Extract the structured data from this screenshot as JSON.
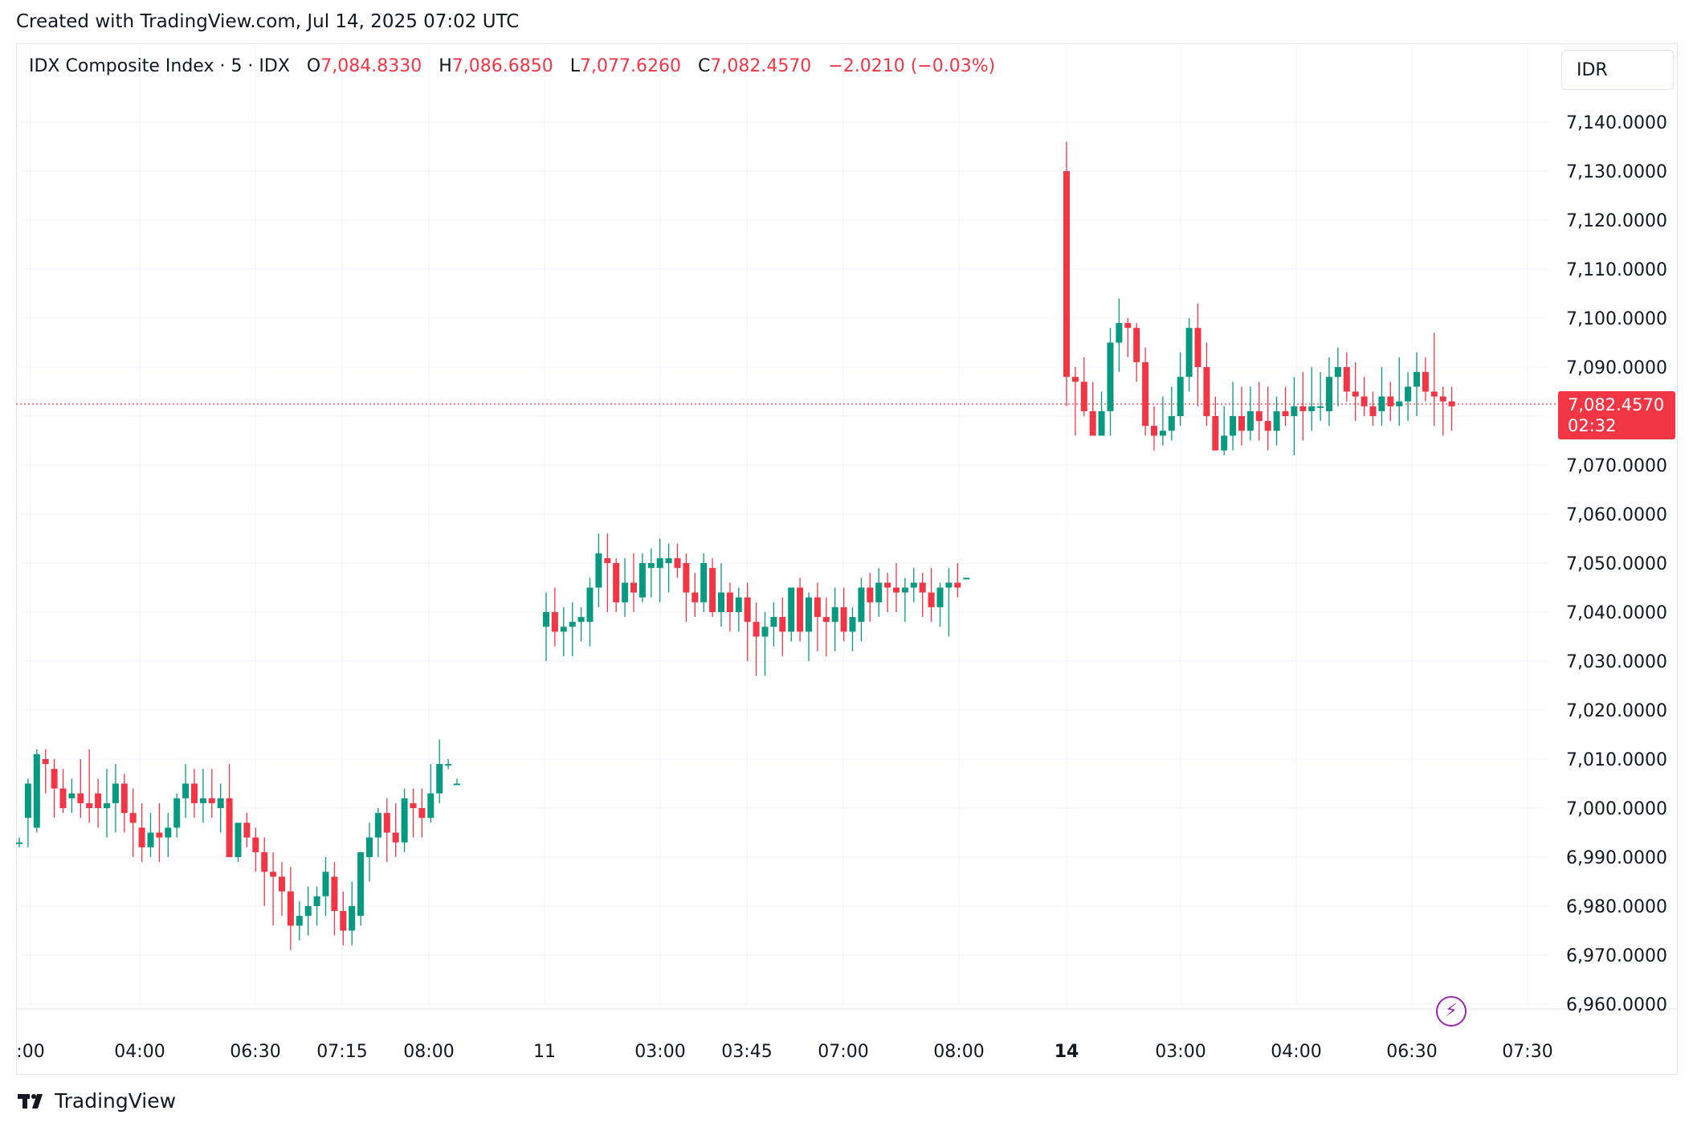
{
  "header": {
    "created_with": "Created with TradingView.com, Jul 14, 2025 07:02 UTC"
  },
  "legend": {
    "symbol": "IDX Composite Index · 5 · IDX",
    "open_label": "O",
    "open_value": "7,084.8330",
    "high_label": "H",
    "high_value": "7,086.6850",
    "low_label": "L",
    "low_value": "7,077.6260",
    "close_label": "C",
    "close_value": "7,082.4570",
    "change": "−2.0210 (−0.03%)"
  },
  "currency": "IDR",
  "last_price": {
    "value": "7,082.4570",
    "countdown": "02:32"
  },
  "footer": {
    "brand": "TradingView"
  },
  "colors": {
    "up": "#089981",
    "down": "#f23645",
    "grid": "#f0f3fa",
    "accent": "#9c27b0"
  },
  "icons": {
    "bolt": "lightning-icon",
    "logo": "tradingview-logo-icon"
  },
  "chart_data": {
    "type": "candlestick",
    "title": "IDX Composite Index · 5 · IDX",
    "currency": "IDR",
    "interval": "5",
    "y_ticks": [
      "7,140.0000",
      "7,130.0000",
      "7,120.0000",
      "7,110.0000",
      "7,100.0000",
      "7,090.0000",
      "7,070.0000",
      "7,060.0000",
      "7,050.0000",
      "7,040.0000",
      "7,030.0000",
      "7,020.0000",
      "7,010.0000",
      "7,000.0000",
      "6,990.0000",
      "6,980.0000",
      "6,970.0000",
      "6,960.0000"
    ],
    "y_tick_values": [
      7140,
      7130,
      7120,
      7110,
      7100,
      7090,
      7070,
      7060,
      7050,
      7040,
      7030,
      7020,
      7010,
      7000,
      6990,
      6980,
      6970,
      6960
    ],
    "ylim": [
      6955,
      7150
    ],
    "x_ticks": [
      ":00",
      "04:00",
      "06:30",
      "07:15",
      "08:00",
      "11",
      "03:00",
      "03:45",
      "07:00",
      "08:00",
      "14",
      "03:00",
      "04:00",
      "06:30",
      "07:30"
    ],
    "x_ticks_bold": [
      false,
      false,
      false,
      false,
      false,
      false,
      false,
      false,
      false,
      false,
      true,
      false,
      false,
      false,
      false
    ],
    "last_value": 7082.457,
    "sessions": [
      {
        "name": "s1",
        "candles": [
          [
            6993,
            6994,
            6992,
            6993
          ],
          [
            6998,
            7006,
            6992,
            7005
          ],
          [
            6996,
            7012,
            6995,
            7011
          ],
          [
            7010,
            7012,
            7003,
            7009
          ],
          [
            7008,
            7010,
            6998,
            7004
          ],
          [
            7004,
            7008,
            6999,
            7000
          ],
          [
            7002,
            7006,
            6999,
            7003
          ],
          [
            7003,
            7010,
            6998,
            7001
          ],
          [
            7001,
            7012,
            6997,
            7000
          ],
          [
            7003,
            7006,
            6996,
            7000
          ],
          [
            7000,
            7008,
            6994,
            7001
          ],
          [
            7001,
            7009,
            6995,
            7005
          ],
          [
            7005,
            7007,
            6995,
            6999
          ],
          [
            6999,
            7004,
            6990,
            6997
          ],
          [
            6996,
            7001,
            6989,
            6992
          ],
          [
            6992,
            6999,
            6990,
            6995
          ],
          [
            6995,
            7001,
            6989,
            6994
          ],
          [
            6994,
            6999,
            6990,
            6996
          ],
          [
            6996,
            7003,
            6994,
            7002
          ],
          [
            7002,
            7009,
            6998,
            7005
          ],
          [
            7005,
            7008,
            6998,
            7001
          ],
          [
            7001,
            7008,
            6997,
            7002
          ],
          [
            7002,
            7008,
            6998,
            7001
          ],
          [
            7000,
            7005,
            6995,
            7002
          ],
          [
            7002,
            7009,
            6990,
            6990
          ],
          [
            6990,
            6997,
            6989,
            6997
          ],
          [
            6997,
            6999,
            6992,
            6994
          ],
          [
            6994,
            6996,
            6987,
            6991
          ],
          [
            6991,
            6994,
            6980,
            6987
          ],
          [
            6987,
            6991,
            6976,
            6986
          ],
          [
            6986,
            6989,
            6978,
            6983
          ],
          [
            6983,
            6988,
            6971,
            6976
          ],
          [
            6976,
            6981,
            6973,
            6978
          ],
          [
            6978,
            6984,
            6974,
            6980
          ],
          [
            6980,
            6984,
            6976,
            6982
          ],
          [
            6982,
            6990,
            6978,
            6987
          ],
          [
            6986,
            6989,
            6974,
            6979
          ],
          [
            6979,
            6983,
            6972,
            6975
          ],
          [
            6975,
            6985,
            6972,
            6980
          ],
          [
            6978,
            6991,
            6976,
            6991
          ],
          [
            6990,
            6997,
            6985,
            6994
          ],
          [
            6994,
            7000,
            6990,
            6999
          ],
          [
            6999,
            7002,
            6989,
            6995
          ],
          [
            6995,
            7001,
            6990,
            6993
          ],
          [
            6993,
            7004,
            6991,
            7002
          ],
          [
            7001,
            7004,
            6994,
            7000
          ],
          [
            7000,
            7004,
            6994,
            6998
          ],
          [
            6998,
            7009,
            6997,
            7003
          ],
          [
            7003,
            7014,
            7001,
            7009
          ],
          [
            7009,
            7010,
            7008,
            7009
          ],
          [
            7005,
            7006,
            7005,
            7005
          ]
        ]
      },
      {
        "name": "s2",
        "candles": [
          [
            7037,
            7044,
            7030,
            7040
          ],
          [
            7040,
            7045,
            7033,
            7036
          ],
          [
            7036,
            7041,
            7031,
            7037
          ],
          [
            7037,
            7042,
            7031,
            7038
          ],
          [
            7038,
            7041,
            7034,
            7039
          ],
          [
            7038,
            7047,
            7033,
            7045
          ],
          [
            7045,
            7056,
            7041,
            7052
          ],
          [
            7051,
            7056,
            7040,
            7050
          ],
          [
            7050,
            7051,
            7040,
            7042
          ],
          [
            7042,
            7051,
            7039,
            7046
          ],
          [
            7046,
            7052,
            7040,
            7044
          ],
          [
            7043,
            7052,
            7042,
            7050
          ],
          [
            7049,
            7053,
            7043,
            7050
          ],
          [
            7049,
            7055,
            7042,
            7051
          ],
          [
            7050,
            7054,
            7044,
            7051
          ],
          [
            7051,
            7054,
            7047,
            7049
          ],
          [
            7050,
            7052,
            7038,
            7044
          ],
          [
            7044,
            7048,
            7039,
            7042
          ],
          [
            7042,
            7052,
            7040,
            7050
          ],
          [
            7049,
            7051,
            7039,
            7040
          ],
          [
            7040,
            7050,
            7037,
            7044
          ],
          [
            7044,
            7046,
            7036,
            7040
          ],
          [
            7040,
            7045,
            7036,
            7043
          ],
          [
            7043,
            7046,
            7030,
            7038
          ],
          [
            7038,
            7042,
            7027,
            7035
          ],
          [
            7035,
            7040,
            7027,
            7037
          ],
          [
            7037,
            7042,
            7033,
            7039
          ],
          [
            7039,
            7043,
            7031,
            7036
          ],
          [
            7036,
            7045,
            7034,
            7045
          ],
          [
            7045,
            7047,
            7034,
            7036
          ],
          [
            7036,
            7044,
            7030,
            7043
          ],
          [
            7043,
            7046,
            7032,
            7039
          ],
          [
            7039,
            7043,
            7031,
            7038
          ],
          [
            7038,
            7045,
            7032,
            7041
          ],
          [
            7041,
            7045,
            7034,
            7036
          ],
          [
            7036,
            7041,
            7032,
            7039
          ],
          [
            7038,
            7047,
            7034,
            7045
          ],
          [
            7045,
            7048,
            7038,
            7042
          ],
          [
            7042,
            7049,
            7039,
            7046
          ],
          [
            7046,
            7048,
            7040,
            7045
          ],
          [
            7045,
            7050,
            7040,
            7044
          ],
          [
            7044,
            7047,
            7038,
            7045
          ],
          [
            7045,
            7049,
            7042,
            7046
          ],
          [
            7046,
            7048,
            7039,
            7044
          ],
          [
            7044,
            7049,
            7038,
            7041
          ],
          [
            7041,
            7046,
            7037,
            7045
          ],
          [
            7045,
            7049,
            7035,
            7046
          ],
          [
            7046,
            7050,
            7043,
            7045
          ],
          [
            7047,
            7047,
            7047,
            7047
          ]
        ]
      },
      {
        "name": "s3",
        "candles": [
          [
            7130,
            7136,
            7082,
            7088
          ],
          [
            7088,
            7090,
            7076,
            7087
          ],
          [
            7087,
            7092,
            7080,
            7081
          ],
          [
            7081,
            7087,
            7076,
            7076
          ],
          [
            7076,
            7085,
            7076,
            7081
          ],
          [
            7081,
            7098,
            7076,
            7095
          ],
          [
            7095,
            7104,
            7089,
            7099
          ],
          [
            7099,
            7100,
            7092,
            7098
          ],
          [
            7098,
            7099,
            7087,
            7091
          ],
          [
            7091,
            7094,
            7076,
            7078
          ],
          [
            7078,
            7082,
            7073,
            7076
          ],
          [
            7076,
            7084,
            7074,
            7077
          ],
          [
            7077,
            7086,
            7075,
            7080
          ],
          [
            7080,
            7093,
            7078,
            7088
          ],
          [
            7088,
            7100,
            7085,
            7098
          ],
          [
            7098,
            7103,
            7082,
            7090
          ],
          [
            7090,
            7095,
            7078,
            7080
          ],
          [
            7080,
            7084,
            7073,
            7073
          ],
          [
            7073,
            7082,
            7072,
            7076
          ],
          [
            7076,
            7087,
            7073,
            7080
          ],
          [
            7080,
            7086,
            7074,
            7077
          ],
          [
            7077,
            7086,
            7075,
            7081
          ],
          [
            7081,
            7087,
            7075,
            7079
          ],
          [
            7079,
            7086,
            7073,
            7077
          ],
          [
            7077,
            7084,
            7074,
            7081
          ],
          [
            7081,
            7086,
            7078,
            7080
          ],
          [
            7080,
            7088,
            7072,
            7082
          ],
          [
            7082,
            7089,
            7075,
            7081
          ],
          [
            7081,
            7090,
            7077,
            7082
          ],
          [
            7082,
            7089,
            7079,
            7082
          ],
          [
            7081,
            7092,
            7078,
            7088
          ],
          [
            7088,
            7094,
            7082,
            7090
          ],
          [
            7090,
            7093,
            7083,
            7085
          ],
          [
            7085,
            7091,
            7079,
            7084
          ],
          [
            7084,
            7088,
            7080,
            7082
          ],
          [
            7082,
            7085,
            7078,
            7080
          ],
          [
            7081,
            7090,
            7078,
            7084
          ],
          [
            7084,
            7087,
            7079,
            7082
          ],
          [
            7082,
            7092,
            7078,
            7083
          ],
          [
            7083,
            7089,
            7079,
            7086
          ],
          [
            7086,
            7093,
            7080,
            7089
          ],
          [
            7089,
            7092,
            7083,
            7085
          ],
          [
            7085,
            7097,
            7078,
            7084
          ],
          [
            7084,
            7086,
            7076,
            7083
          ],
          [
            7083,
            7086,
            7077,
            7082
          ]
        ]
      }
    ]
  }
}
